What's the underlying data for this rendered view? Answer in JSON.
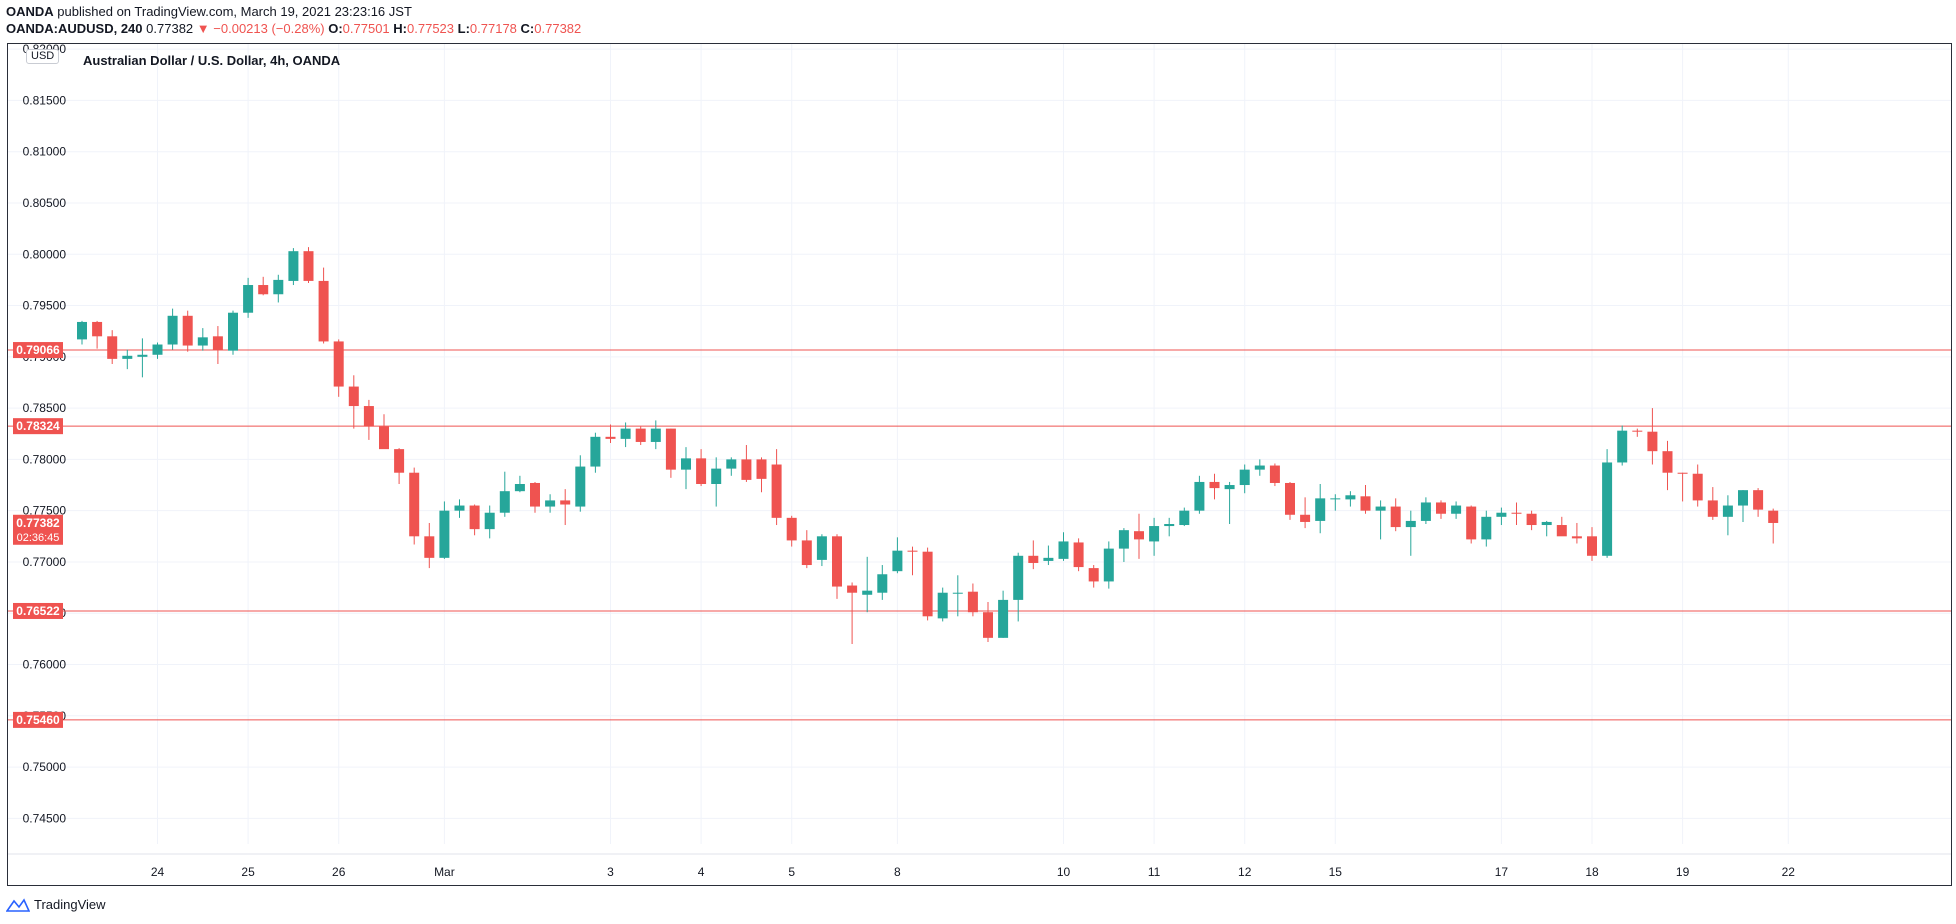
{
  "header": {
    "publisher": "OANDA",
    "publish_text": "published on TradingView.com, March 19, 2021 23:23:16 JST",
    "symbol": "OANDA:AUDUSD, 240",
    "last": "0.77382",
    "change": "−0.00213 (−0.28%)",
    "o_label": "O:",
    "o_value": "0.77501",
    "h_label": "H:",
    "h_value": "0.77523",
    "l_label": "L:",
    "l_value": "0.77178",
    "c_label": "C:",
    "c_value": "0.77382"
  },
  "chart_title": "Australian Dollar / U.S. Dollar, 4h, OANDA",
  "currency_badge": "USD",
  "footer": {
    "brand": "TradingView"
  },
  "colors": {
    "up": "#26a69a",
    "down": "#ef5350",
    "hline": "#ef5350",
    "grid": "#f0f3fa",
    "axis_text": "#131722"
  },
  "chart_data": {
    "type": "candlestick",
    "title": "Australian Dollar / U.S. Dollar, 4h, OANDA",
    "ylim": [
      0.7425,
      0.8205
    ],
    "y_ticks": [
      "0.74500",
      "0.75000",
      "0.75500",
      "0.76000",
      "0.76500",
      "0.77000",
      "0.77500",
      "0.78000",
      "0.78500",
      "0.79000",
      "0.79500",
      "0.80000",
      "0.80500",
      "0.81000",
      "0.81500",
      "0.82000"
    ],
    "x_ticks": [
      {
        "label": "24",
        "index": 5
      },
      {
        "label": "25",
        "index": 11
      },
      {
        "label": "26",
        "index": 17
      },
      {
        "label": "Mar",
        "index": 24
      },
      {
        "label": "3",
        "index": 35
      },
      {
        "label": "4",
        "index": 41
      },
      {
        "label": "5",
        "index": 47
      },
      {
        "label": "8",
        "index": 54
      },
      {
        "label": "10",
        "index": 65
      },
      {
        "label": "11",
        "index": 71
      },
      {
        "label": "12",
        "index": 77
      },
      {
        "label": "15",
        "index": 83
      },
      {
        "label": "17",
        "index": 94
      },
      {
        "label": "18",
        "index": 100
      },
      {
        "label": "19",
        "index": 106
      },
      {
        "label": "22",
        "index": 113
      }
    ],
    "grid": true,
    "horizontal_lines": [
      {
        "price": "0.79066",
        "value": 0.79066
      },
      {
        "price": "0.78324",
        "value": 0.78324
      },
      {
        "price": "0.76522",
        "value": 0.76522
      },
      {
        "price": "0.75460",
        "value": 0.7546
      }
    ],
    "current_price": {
      "price": "0.77382",
      "countdown": "02:36:45",
      "value": 0.77382
    },
    "candles": [
      {
        "o": 0.7917,
        "h": 0.7935,
        "l": 0.7912,
        "c": 0.7934
      },
      {
        "o": 0.7934,
        "h": 0.7935,
        "l": 0.7908,
        "c": 0.792
      },
      {
        "o": 0.792,
        "h": 0.7926,
        "l": 0.7893,
        "c": 0.7898
      },
      {
        "o": 0.7898,
        "h": 0.7907,
        "l": 0.7888,
        "c": 0.7901
      },
      {
        "o": 0.79,
        "h": 0.7918,
        "l": 0.788,
        "c": 0.7902
      },
      {
        "o": 0.7902,
        "h": 0.7914,
        "l": 0.7898,
        "c": 0.7912
      },
      {
        "o": 0.7912,
        "h": 0.7947,
        "l": 0.7907,
        "c": 0.794
      },
      {
        "o": 0.794,
        "h": 0.7945,
        "l": 0.7905,
        "c": 0.7911
      },
      {
        "o": 0.7911,
        "h": 0.7928,
        "l": 0.7906,
        "c": 0.7919
      },
      {
        "o": 0.792,
        "h": 0.793,
        "l": 0.7893,
        "c": 0.7907
      },
      {
        "o": 0.7906,
        "h": 0.7945,
        "l": 0.7902,
        "c": 0.7943
      },
      {
        "o": 0.7943,
        "h": 0.7977,
        "l": 0.7938,
        "c": 0.797
      },
      {
        "o": 0.797,
        "h": 0.7978,
        "l": 0.796,
        "c": 0.7961
      },
      {
        "o": 0.7961,
        "h": 0.798,
        "l": 0.7953,
        "c": 0.7975
      },
      {
        "o": 0.7974,
        "h": 0.8006,
        "l": 0.797,
        "c": 0.8003
      },
      {
        "o": 0.8003,
        "h": 0.8007,
        "l": 0.7972,
        "c": 0.7974
      },
      {
        "o": 0.7974,
        "h": 0.7987,
        "l": 0.7913,
        "c": 0.7915
      },
      {
        "o": 0.7915,
        "h": 0.7917,
        "l": 0.7861,
        "c": 0.7871
      },
      {
        "o": 0.7871,
        "h": 0.7882,
        "l": 0.783,
        "c": 0.7852
      },
      {
        "o": 0.7852,
        "h": 0.7858,
        "l": 0.7819,
        "c": 0.7832
      },
      {
        "o": 0.7832,
        "h": 0.7844,
        "l": 0.7812,
        "c": 0.781
      },
      {
        "o": 0.781,
        "h": 0.7811,
        "l": 0.7776,
        "c": 0.7787
      },
      {
        "o": 0.7787,
        "h": 0.7792,
        "l": 0.7717,
        "c": 0.7725
      },
      {
        "o": 0.7725,
        "h": 0.7738,
        "l": 0.7694,
        "c": 0.7704
      },
      {
        "o": 0.7704,
        "h": 0.7759,
        "l": 0.7703,
        "c": 0.775
      },
      {
        "o": 0.775,
        "h": 0.7761,
        "l": 0.7743,
        "c": 0.7755
      },
      {
        "o": 0.7755,
        "h": 0.7756,
        "l": 0.7726,
        "c": 0.7732
      },
      {
        "o": 0.7732,
        "h": 0.7755,
        "l": 0.7723,
        "c": 0.7748
      },
      {
        "o": 0.7748,
        "h": 0.7788,
        "l": 0.7744,
        "c": 0.7769
      },
      {
        "o": 0.7769,
        "h": 0.7784,
        "l": 0.7768,
        "c": 0.7776
      },
      {
        "o": 0.7777,
        "h": 0.7778,
        "l": 0.7748,
        "c": 0.7754
      },
      {
        "o": 0.7754,
        "h": 0.7766,
        "l": 0.7748,
        "c": 0.776
      },
      {
        "o": 0.776,
        "h": 0.7771,
        "l": 0.7736,
        "c": 0.7756
      },
      {
        "o": 0.7754,
        "h": 0.7804,
        "l": 0.7749,
        "c": 0.7793
      },
      {
        "o": 0.7793,
        "h": 0.7826,
        "l": 0.7787,
        "c": 0.7822
      },
      {
        "o": 0.7822,
        "h": 0.7834,
        "l": 0.7816,
        "c": 0.782
      },
      {
        "o": 0.782,
        "h": 0.7836,
        "l": 0.7812,
        "c": 0.783
      },
      {
        "o": 0.783,
        "h": 0.7832,
        "l": 0.7814,
        "c": 0.7817
      },
      {
        "o": 0.7817,
        "h": 0.7838,
        "l": 0.781,
        "c": 0.783
      },
      {
        "o": 0.783,
        "h": 0.783,
        "l": 0.7782,
        "c": 0.779
      },
      {
        "o": 0.779,
        "h": 0.7812,
        "l": 0.7771,
        "c": 0.7801
      },
      {
        "o": 0.7801,
        "h": 0.781,
        "l": 0.7774,
        "c": 0.7776
      },
      {
        "o": 0.7776,
        "h": 0.7802,
        "l": 0.7754,
        "c": 0.7791
      },
      {
        "o": 0.7791,
        "h": 0.7802,
        "l": 0.7784,
        "c": 0.78
      },
      {
        "o": 0.78,
        "h": 0.7814,
        "l": 0.7778,
        "c": 0.778
      },
      {
        "o": 0.78,
        "h": 0.7802,
        "l": 0.7768,
        "c": 0.7781
      },
      {
        "o": 0.7795,
        "h": 0.781,
        "l": 0.7736,
        "c": 0.7743
      },
      {
        "o": 0.7743,
        "h": 0.7745,
        "l": 0.7715,
        "c": 0.7721
      },
      {
        "o": 0.7721,
        "h": 0.7731,
        "l": 0.7694,
        "c": 0.7697
      },
      {
        "o": 0.7702,
        "h": 0.7727,
        "l": 0.7696,
        "c": 0.7725
      },
      {
        "o": 0.7725,
        "h": 0.7727,
        "l": 0.7664,
        "c": 0.7676
      },
      {
        "o": 0.7677,
        "h": 0.768,
        "l": 0.762,
        "c": 0.767
      },
      {
        "o": 0.7668,
        "h": 0.7705,
        "l": 0.7651,
        "c": 0.7672
      },
      {
        "o": 0.767,
        "h": 0.7697,
        "l": 0.7663,
        "c": 0.7688
      },
      {
        "o": 0.7691,
        "h": 0.7724,
        "l": 0.7689,
        "c": 0.7711
      },
      {
        "o": 0.7711,
        "h": 0.7715,
        "l": 0.7687,
        "c": 0.771
      },
      {
        "o": 0.771,
        "h": 0.7714,
        "l": 0.7643,
        "c": 0.7647
      },
      {
        "o": 0.7645,
        "h": 0.7675,
        "l": 0.7642,
        "c": 0.767
      },
      {
        "o": 0.767,
        "h": 0.7687,
        "l": 0.7647,
        "c": 0.767
      },
      {
        "o": 0.7671,
        "h": 0.7679,
        "l": 0.7647,
        "c": 0.7651
      },
      {
        "o": 0.7651,
        "h": 0.7661,
        "l": 0.7622,
        "c": 0.7626
      },
      {
        "o": 0.7626,
        "h": 0.7672,
        "l": 0.7626,
        "c": 0.7663
      },
      {
        "o": 0.7663,
        "h": 0.7709,
        "l": 0.7642,
        "c": 0.7706
      },
      {
        "o": 0.7706,
        "h": 0.7721,
        "l": 0.7693,
        "c": 0.7699
      },
      {
        "o": 0.7701,
        "h": 0.7716,
        "l": 0.7697,
        "c": 0.7704
      },
      {
        "o": 0.7703,
        "h": 0.7729,
        "l": 0.7701,
        "c": 0.772
      },
      {
        "o": 0.7719,
        "h": 0.7723,
        "l": 0.7691,
        "c": 0.7695
      },
      {
        "o": 0.7694,
        "h": 0.7697,
        "l": 0.7675,
        "c": 0.7681
      },
      {
        "o": 0.7681,
        "h": 0.772,
        "l": 0.7674,
        "c": 0.7713
      },
      {
        "o": 0.7713,
        "h": 0.7733,
        "l": 0.77,
        "c": 0.7731
      },
      {
        "o": 0.773,
        "h": 0.7747,
        "l": 0.7703,
        "c": 0.7722
      },
      {
        "o": 0.772,
        "h": 0.7743,
        "l": 0.7706,
        "c": 0.7735
      },
      {
        "o": 0.7735,
        "h": 0.7743,
        "l": 0.7725,
        "c": 0.7737
      },
      {
        "o": 0.7736,
        "h": 0.7753,
        "l": 0.7735,
        "c": 0.775
      },
      {
        "o": 0.775,
        "h": 0.7784,
        "l": 0.7747,
        "c": 0.7778
      },
      {
        "o": 0.7778,
        "h": 0.7786,
        "l": 0.7761,
        "c": 0.7772
      },
      {
        "o": 0.7771,
        "h": 0.7778,
        "l": 0.7737,
        "c": 0.7775
      },
      {
        "o": 0.7775,
        "h": 0.7795,
        "l": 0.7767,
        "c": 0.779
      },
      {
        "o": 0.779,
        "h": 0.78,
        "l": 0.7784,
        "c": 0.7794
      },
      {
        "o": 0.7794,
        "h": 0.7796,
        "l": 0.7774,
        "c": 0.7777
      },
      {
        "o": 0.7777,
        "h": 0.7778,
        "l": 0.7741,
        "c": 0.7746
      },
      {
        "o": 0.7746,
        "h": 0.7763,
        "l": 0.7733,
        "c": 0.7739
      },
      {
        "o": 0.774,
        "h": 0.7776,
        "l": 0.7728,
        "c": 0.7762
      },
      {
        "o": 0.7762,
        "h": 0.7766,
        "l": 0.775,
        "c": 0.7762
      },
      {
        "o": 0.7761,
        "h": 0.7769,
        "l": 0.7754,
        "c": 0.7765
      },
      {
        "o": 0.7764,
        "h": 0.7775,
        "l": 0.7747,
        "c": 0.775
      },
      {
        "o": 0.775,
        "h": 0.776,
        "l": 0.7722,
        "c": 0.7754
      },
      {
        "o": 0.7754,
        "h": 0.7762,
        "l": 0.773,
        "c": 0.7734
      },
      {
        "o": 0.7734,
        "h": 0.775,
        "l": 0.7706,
        "c": 0.774
      },
      {
        "o": 0.774,
        "h": 0.7763,
        "l": 0.7737,
        "c": 0.7758
      },
      {
        "o": 0.7758,
        "h": 0.776,
        "l": 0.7742,
        "c": 0.7747
      },
      {
        "o": 0.7747,
        "h": 0.7759,
        "l": 0.7742,
        "c": 0.7755
      },
      {
        "o": 0.7754,
        "h": 0.7755,
        "l": 0.7718,
        "c": 0.7722
      },
      {
        "o": 0.7722,
        "h": 0.775,
        "l": 0.7715,
        "c": 0.7744
      },
      {
        "o": 0.7744,
        "h": 0.7753,
        "l": 0.7736,
        "c": 0.7748
      },
      {
        "o": 0.7748,
        "h": 0.7758,
        "l": 0.7736,
        "c": 0.7747
      },
      {
        "o": 0.7747,
        "h": 0.775,
        "l": 0.7731,
        "c": 0.7736
      },
      {
        "o": 0.7736,
        "h": 0.774,
        "l": 0.7725,
        "c": 0.7739
      },
      {
        "o": 0.7736,
        "h": 0.7744,
        "l": 0.7726,
        "c": 0.7725
      },
      {
        "o": 0.7725,
        "h": 0.7738,
        "l": 0.7718,
        "c": 0.7723
      },
      {
        "o": 0.7725,
        "h": 0.7734,
        "l": 0.7701,
        "c": 0.7706
      },
      {
        "o": 0.7706,
        "h": 0.781,
        "l": 0.7704,
        "c": 0.7797
      },
      {
        "o": 0.7797,
        "h": 0.7833,
        "l": 0.7794,
        "c": 0.7828
      },
      {
        "o": 0.7828,
        "h": 0.783,
        "l": 0.7822,
        "c": 0.7827
      },
      {
        "o": 0.7827,
        "h": 0.785,
        "l": 0.7795,
        "c": 0.7808
      },
      {
        "o": 0.7808,
        "h": 0.7818,
        "l": 0.777,
        "c": 0.7787
      },
      {
        "o": 0.7787,
        "h": 0.7787,
        "l": 0.7759,
        "c": 0.7786
      },
      {
        "o": 0.7786,
        "h": 0.7795,
        "l": 0.7754,
        "c": 0.776
      },
      {
        "o": 0.776,
        "h": 0.7773,
        "l": 0.7741,
        "c": 0.7744
      },
      {
        "o": 0.7744,
        "h": 0.7765,
        "l": 0.7726,
        "c": 0.7755
      },
      {
        "o": 0.7755,
        "h": 0.777,
        "l": 0.7739,
        "c": 0.777
      },
      {
        "o": 0.777,
        "h": 0.7772,
        "l": 0.7744,
        "c": 0.7751
      },
      {
        "o": 0.775,
        "h": 0.7752,
        "l": 0.7718,
        "c": 0.7738
      }
    ]
  }
}
